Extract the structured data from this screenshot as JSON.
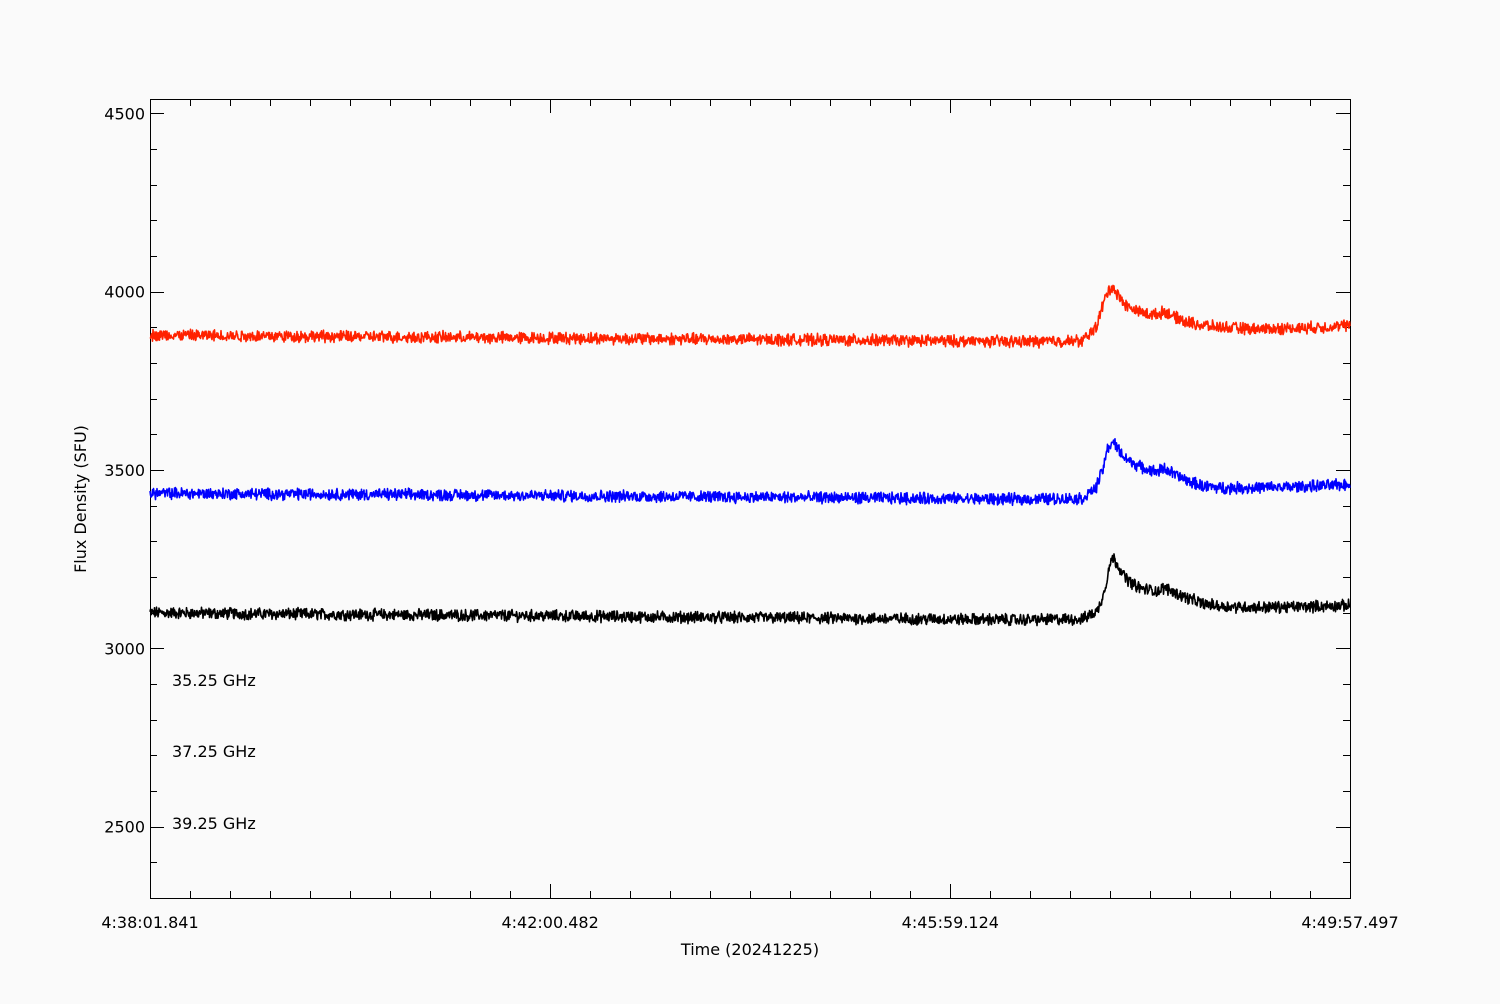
{
  "chart_data": {
    "type": "line",
    "title": "",
    "xlabel": "Time (20241225)",
    "ylabel": "Flux Density (SFU)",
    "xlim": [
      "4:38:01.841",
      "4:49:57.497"
    ],
    "xlim_seconds_of_day": [
      16681.841,
      17397.497
    ],
    "x_ticks": [
      {
        "label": "4:38:01.841",
        "t": 16681.841
      },
      {
        "label": "4:42:00.482",
        "t": 16920.482
      },
      {
        "label": "4:45:59.124",
        "t": 17159.124
      },
      {
        "label": "4:49:57.497",
        "t": 17397.497
      }
    ],
    "ylim": [
      2300,
      4540
    ],
    "y_ticks": [
      2500,
      3000,
      3500,
      4000,
      4500
    ],
    "grid": false,
    "legend_placement": "bottom-left",
    "series": [
      {
        "name": "35.25 GHz",
        "color": "#000000",
        "points": [
          [
            16681.841,
            3100
          ],
          [
            16740,
            3097
          ],
          [
            16800,
            3095
          ],
          [
            16860,
            3093
          ],
          [
            16920,
            3091
          ],
          [
            16980,
            3088
          ],
          [
            17040,
            3086
          ],
          [
            17100,
            3084
          ],
          [
            17150,
            3082
          ],
          [
            17200,
            3080
          ],
          [
            17238,
            3082
          ],
          [
            17247,
            3105
          ],
          [
            17251,
            3160
          ],
          [
            17254,
            3230
          ],
          [
            17256,
            3255
          ],
          [
            17259,
            3235
          ],
          [
            17263,
            3200
          ],
          [
            17268,
            3180
          ],
          [
            17273,
            3168
          ],
          [
            17283,
            3160
          ],
          [
            17287,
            3170
          ],
          [
            17292,
            3158
          ],
          [
            17300,
            3142
          ],
          [
            17310,
            3125
          ],
          [
            17320,
            3118
          ],
          [
            17340,
            3115
          ],
          [
            17360,
            3116
          ],
          [
            17380,
            3118
          ],
          [
            17397.497,
            3120
          ]
        ]
      },
      {
        "name": "37.25 GHz",
        "color": "#0000ff",
        "points": [
          [
            16681.841,
            3435
          ],
          [
            16740,
            3433
          ],
          [
            16800,
            3432
          ],
          [
            16860,
            3430
          ],
          [
            16920,
            3428
          ],
          [
            16980,
            3426
          ],
          [
            17040,
            3424
          ],
          [
            17100,
            3422
          ],
          [
            17150,
            3420
          ],
          [
            17200,
            3418
          ],
          [
            17238,
            3420
          ],
          [
            17246,
            3450
          ],
          [
            17250,
            3500
          ],
          [
            17253,
            3560
          ],
          [
            17256,
            3580
          ],
          [
            17259,
            3560
          ],
          [
            17263,
            3535
          ],
          [
            17268,
            3520
          ],
          [
            17274,
            3505
          ],
          [
            17282,
            3495
          ],
          [
            17287,
            3505
          ],
          [
            17292,
            3490
          ],
          [
            17300,
            3470
          ],
          [
            17310,
            3455
          ],
          [
            17320,
            3450
          ],
          [
            17340,
            3450
          ],
          [
            17360,
            3452
          ],
          [
            17380,
            3455
          ],
          [
            17397.497,
            3460
          ]
        ]
      },
      {
        "name": "39.25 GHz",
        "color": "#ff2200",
        "points": [
          [
            16681.841,
            3878
          ],
          [
            16740,
            3876
          ],
          [
            16800,
            3874
          ],
          [
            16860,
            3872
          ],
          [
            16920,
            3870
          ],
          [
            16980,
            3868
          ],
          [
            17040,
            3866
          ],
          [
            17100,
            3864
          ],
          [
            17150,
            3862
          ],
          [
            17200,
            3860
          ],
          [
            17238,
            3862
          ],
          [
            17246,
            3900
          ],
          [
            17250,
            3960
          ],
          [
            17253,
            4000
          ],
          [
            17256,
            4015
          ],
          [
            17259,
            3990
          ],
          [
            17263,
            3965
          ],
          [
            17268,
            3950
          ],
          [
            17274,
            3940
          ],
          [
            17282,
            3935
          ],
          [
            17287,
            3945
          ],
          [
            17292,
            3930
          ],
          [
            17300,
            3915
          ],
          [
            17310,
            3905
          ],
          [
            17320,
            3900
          ],
          [
            17340,
            3895
          ],
          [
            17360,
            3897
          ],
          [
            17380,
            3900
          ],
          [
            17397.497,
            3905
          ]
        ]
      }
    ]
  }
}
